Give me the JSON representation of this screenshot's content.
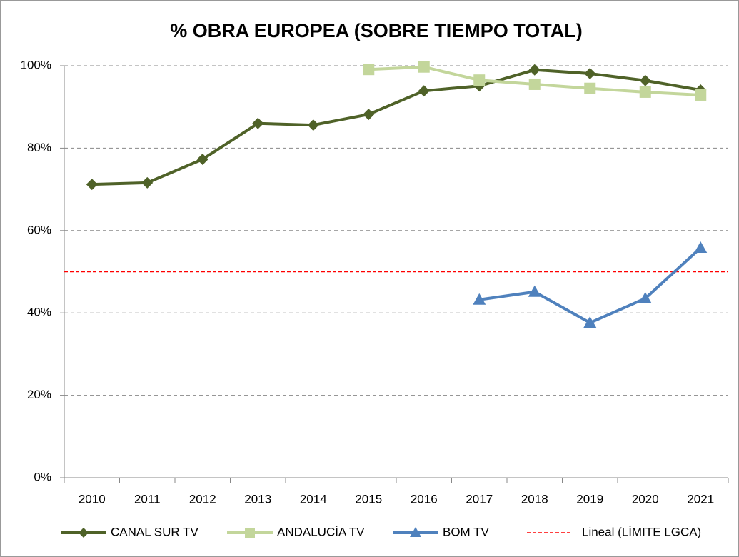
{
  "chart_data": {
    "type": "line",
    "title": "% OBRA EUROPEA (SOBRE TIEMPO TOTAL)",
    "categories": [
      "2010",
      "2011",
      "2012",
      "2013",
      "2014",
      "2015",
      "2016",
      "2017",
      "2018",
      "2019",
      "2020",
      "2021"
    ],
    "series": [
      {
        "name": "CANAL SUR TV",
        "color": "#4f6228",
        "marker": "diamond",
        "values": [
          71.2,
          71.6,
          77.3,
          86.0,
          85.6,
          88.2,
          93.9,
          95.1,
          99.0,
          98.1,
          96.4,
          94.1
        ]
      },
      {
        "name": "ANDALUCÍA TV",
        "color": "#c3d69b",
        "marker": "square",
        "values": [
          null,
          null,
          null,
          null,
          null,
          99.1,
          99.7,
          96.5,
          95.5,
          94.5,
          93.6,
          92.9
        ]
      },
      {
        "name": "BOM TV",
        "color": "#4f81bd",
        "marker": "triangle",
        "values": [
          null,
          null,
          null,
          null,
          null,
          null,
          null,
          43.2,
          45.1,
          37.6,
          43.5,
          55.8
        ]
      }
    ],
    "reference_line": {
      "name": "Lineal (LÍMITE LGCA)",
      "value": 50,
      "color": "#ff0000"
    },
    "ylim": [
      0,
      100
    ],
    "yticks": [
      {
        "value": 0,
        "label": "0%"
      },
      {
        "value": 20,
        "label": "20%"
      },
      {
        "value": 40,
        "label": "40%"
      },
      {
        "value": 60,
        "label": "60%"
      },
      {
        "value": 80,
        "label": "80%"
      },
      {
        "value": 100,
        "label": "100%"
      }
    ],
    "grid": true,
    "legend": "bottom"
  }
}
